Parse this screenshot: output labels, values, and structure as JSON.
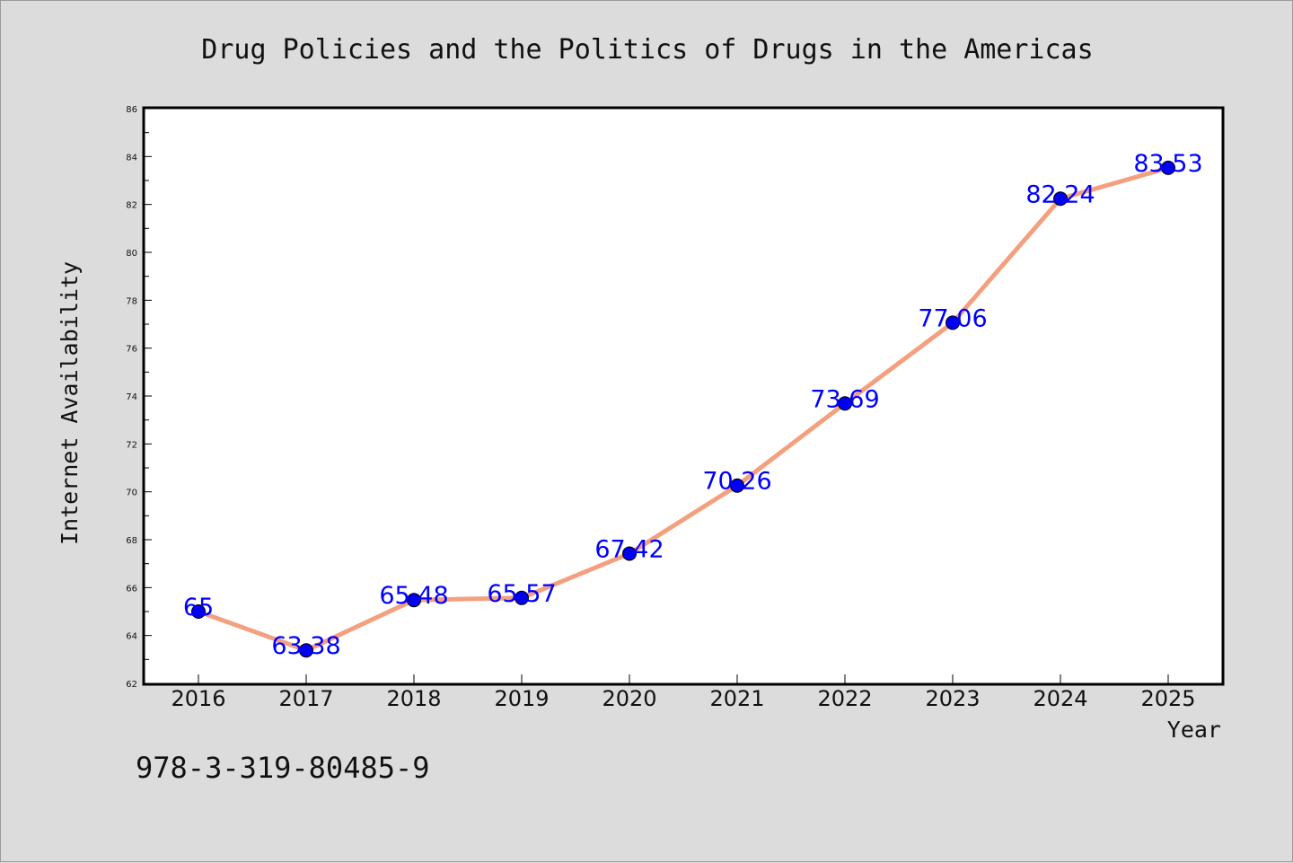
{
  "chart_data": {
    "type": "line",
    "title": "Drug Policies and the Politics of Drugs in the Americas",
    "xlabel": "Year",
    "ylabel": "Internet Availability",
    "categories": [
      "2016",
      "2017",
      "2018",
      "2019",
      "2020",
      "2021",
      "2022",
      "2023",
      "2024",
      "2025"
    ],
    "values": [
      65,
      63.38,
      65.48,
      65.57,
      67.42,
      70.26,
      73.69,
      77.06,
      82.24,
      83.53
    ],
    "data_labels": [
      "65",
      "63.38",
      "65.48",
      "65.57",
      "67.42",
      "70.26",
      "73.69",
      "77.06",
      "82.24",
      "83.53"
    ],
    "ylim": [
      62,
      86
    ],
    "yticks": [
      "62",
      "64",
      "66",
      "68",
      "70",
      "72",
      "74",
      "76",
      "78",
      "80",
      "82",
      "84",
      "86"
    ],
    "grid": false,
    "legend": "none",
    "line_color": "#f4a07f",
    "marker_color": "#0000ee",
    "label_color": "#0000ff"
  },
  "footer": {
    "code": "978-3-319-80485-9"
  }
}
